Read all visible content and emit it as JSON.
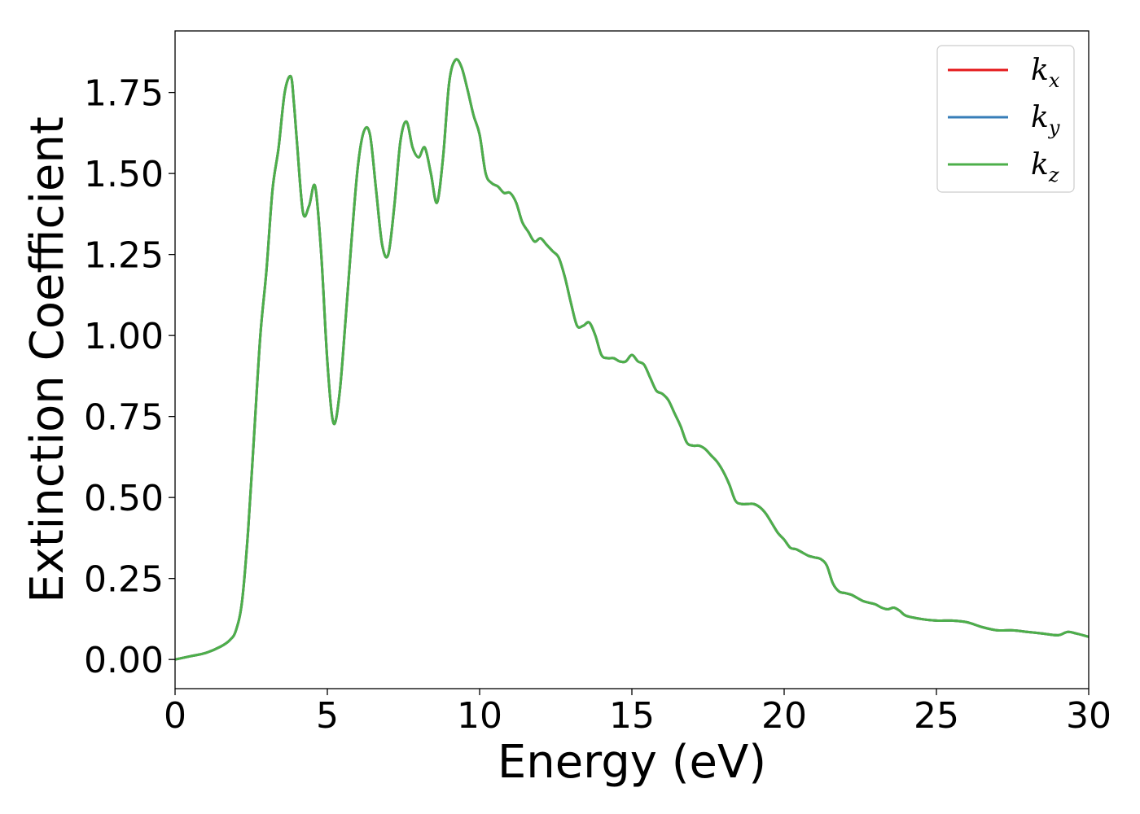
{
  "chart_data": {
    "type": "line",
    "title": "",
    "xlabel": "Energy (eV)",
    "ylabel": "Extinction Coefficient",
    "xlim": [
      0,
      30
    ],
    "ylim": [
      -0.09,
      1.94
    ],
    "xticks": [
      0,
      5,
      10,
      15,
      20,
      25,
      30
    ],
    "xtick_labels": [
      "0",
      "5",
      "10",
      "15",
      "20",
      "25",
      "30"
    ],
    "yticks": [
      0.0,
      0.25,
      0.5,
      0.75,
      1.0,
      1.25,
      1.5,
      1.75
    ],
    "ytick_labels": [
      "0.00",
      "0.25",
      "0.50",
      "0.75",
      "1.00",
      "1.25",
      "1.50",
      "1.75"
    ],
    "grid": false,
    "legend_position": "top-right",
    "x": [
      0,
      0.5,
      1.0,
      1.5,
      1.8,
      2.0,
      2.2,
      2.4,
      2.6,
      2.8,
      3.0,
      3.2,
      3.4,
      3.6,
      3.8,
      3.9,
      4.0,
      4.2,
      4.4,
      4.6,
      4.8,
      5.0,
      5.2,
      5.4,
      5.6,
      5.8,
      6.0,
      6.2,
      6.4,
      6.6,
      6.8,
      7.0,
      7.2,
      7.4,
      7.6,
      7.8,
      8.0,
      8.2,
      8.4,
      8.6,
      8.8,
      9.0,
      9.2,
      9.4,
      9.6,
      9.8,
      10.0,
      10.2,
      10.4,
      10.6,
      10.8,
      11.0,
      11.2,
      11.4,
      11.6,
      11.8,
      12.0,
      12.2,
      12.4,
      12.6,
      12.8,
      13.0,
      13.2,
      13.4,
      13.6,
      13.8,
      14.0,
      14.2,
      14.4,
      14.6,
      14.8,
      15.0,
      15.2,
      15.4,
      15.6,
      15.8,
      16.0,
      16.2,
      16.4,
      16.6,
      16.8,
      17.0,
      17.2,
      17.4,
      17.6,
      17.8,
      18.0,
      18.2,
      18.4,
      18.6,
      18.8,
      19.0,
      19.2,
      19.4,
      19.6,
      19.8,
      20.0,
      20.2,
      20.4,
      20.6,
      20.8,
      21.0,
      21.2,
      21.4,
      21.6,
      21.8,
      22.0,
      22.2,
      22.4,
      22.6,
      22.8,
      23.0,
      23.2,
      23.4,
      23.6,
      23.8,
      24.0,
      24.5,
      25.0,
      25.5,
      26.0,
      26.5,
      27.0,
      27.5,
      28.0,
      28.5,
      29.0,
      29.3,
      29.6,
      30.0
    ],
    "series": [
      {
        "name": "k_x",
        "color": "#e41a1c",
        "values": [
          0.0,
          0.01,
          0.02,
          0.04,
          0.06,
          0.09,
          0.18,
          0.4,
          0.7,
          1.0,
          1.2,
          1.45,
          1.58,
          1.75,
          1.8,
          1.72,
          1.6,
          1.38,
          1.4,
          1.46,
          1.25,
          0.92,
          0.73,
          0.82,
          1.05,
          1.3,
          1.52,
          1.63,
          1.62,
          1.45,
          1.28,
          1.25,
          1.4,
          1.6,
          1.66,
          1.58,
          1.55,
          1.58,
          1.5,
          1.41,
          1.55,
          1.78,
          1.85,
          1.83,
          1.76,
          1.68,
          1.62,
          1.5,
          1.47,
          1.46,
          1.44,
          1.44,
          1.41,
          1.35,
          1.32,
          1.29,
          1.3,
          1.28,
          1.26,
          1.24,
          1.18,
          1.1,
          1.03,
          1.03,
          1.04,
          1.0,
          0.94,
          0.93,
          0.93,
          0.92,
          0.92,
          0.94,
          0.92,
          0.91,
          0.87,
          0.83,
          0.82,
          0.8,
          0.76,
          0.72,
          0.67,
          0.66,
          0.66,
          0.65,
          0.63,
          0.61,
          0.58,
          0.54,
          0.49,
          0.48,
          0.48,
          0.48,
          0.47,
          0.45,
          0.42,
          0.39,
          0.37,
          0.345,
          0.34,
          0.33,
          0.32,
          0.315,
          0.31,
          0.29,
          0.235,
          0.21,
          0.205,
          0.2,
          0.19,
          0.18,
          0.175,
          0.17,
          0.16,
          0.155,
          0.16,
          0.15,
          0.135,
          0.125,
          0.12,
          0.12,
          0.115,
          0.1,
          0.09,
          0.09,
          0.085,
          0.08,
          0.075,
          0.085,
          0.08,
          0.07
        ]
      },
      {
        "name": "k_y",
        "color": "#377eb8",
        "values": [
          0.0,
          0.01,
          0.02,
          0.04,
          0.06,
          0.09,
          0.18,
          0.4,
          0.7,
          1.0,
          1.2,
          1.45,
          1.58,
          1.75,
          1.8,
          1.72,
          1.6,
          1.38,
          1.4,
          1.46,
          1.25,
          0.92,
          0.73,
          0.82,
          1.05,
          1.3,
          1.52,
          1.63,
          1.62,
          1.45,
          1.28,
          1.25,
          1.4,
          1.6,
          1.66,
          1.58,
          1.55,
          1.58,
          1.5,
          1.41,
          1.55,
          1.78,
          1.85,
          1.83,
          1.76,
          1.68,
          1.62,
          1.5,
          1.47,
          1.46,
          1.44,
          1.44,
          1.41,
          1.35,
          1.32,
          1.29,
          1.3,
          1.28,
          1.26,
          1.24,
          1.18,
          1.1,
          1.03,
          1.03,
          1.04,
          1.0,
          0.94,
          0.93,
          0.93,
          0.92,
          0.92,
          0.94,
          0.92,
          0.91,
          0.87,
          0.83,
          0.82,
          0.8,
          0.76,
          0.72,
          0.67,
          0.66,
          0.66,
          0.65,
          0.63,
          0.61,
          0.58,
          0.54,
          0.49,
          0.48,
          0.48,
          0.48,
          0.47,
          0.45,
          0.42,
          0.39,
          0.37,
          0.345,
          0.34,
          0.33,
          0.32,
          0.315,
          0.31,
          0.29,
          0.235,
          0.21,
          0.205,
          0.2,
          0.19,
          0.18,
          0.175,
          0.17,
          0.16,
          0.155,
          0.16,
          0.15,
          0.135,
          0.125,
          0.12,
          0.12,
          0.115,
          0.1,
          0.09,
          0.09,
          0.085,
          0.08,
          0.075,
          0.085,
          0.08,
          0.07
        ]
      },
      {
        "name": "k_z",
        "color": "#4daf4a",
        "values": [
          0.0,
          0.01,
          0.02,
          0.04,
          0.06,
          0.09,
          0.18,
          0.4,
          0.7,
          1.0,
          1.2,
          1.45,
          1.58,
          1.75,
          1.8,
          1.72,
          1.6,
          1.38,
          1.4,
          1.46,
          1.25,
          0.92,
          0.73,
          0.82,
          1.05,
          1.3,
          1.52,
          1.63,
          1.62,
          1.45,
          1.28,
          1.25,
          1.4,
          1.6,
          1.66,
          1.58,
          1.55,
          1.58,
          1.5,
          1.41,
          1.55,
          1.78,
          1.85,
          1.83,
          1.76,
          1.68,
          1.62,
          1.5,
          1.47,
          1.46,
          1.44,
          1.44,
          1.41,
          1.35,
          1.32,
          1.29,
          1.3,
          1.28,
          1.26,
          1.24,
          1.18,
          1.1,
          1.03,
          1.03,
          1.04,
          1.0,
          0.94,
          0.93,
          0.93,
          0.92,
          0.92,
          0.94,
          0.92,
          0.91,
          0.87,
          0.83,
          0.82,
          0.8,
          0.76,
          0.72,
          0.67,
          0.66,
          0.66,
          0.65,
          0.63,
          0.61,
          0.58,
          0.54,
          0.49,
          0.48,
          0.48,
          0.48,
          0.47,
          0.45,
          0.42,
          0.39,
          0.37,
          0.345,
          0.34,
          0.33,
          0.32,
          0.315,
          0.31,
          0.29,
          0.235,
          0.21,
          0.205,
          0.2,
          0.19,
          0.18,
          0.175,
          0.17,
          0.16,
          0.155,
          0.16,
          0.15,
          0.135,
          0.125,
          0.12,
          0.12,
          0.115,
          0.1,
          0.09,
          0.09,
          0.085,
          0.08,
          0.075,
          0.085,
          0.08,
          0.07
        ]
      }
    ],
    "legend": [
      {
        "base": "k",
        "sub": "x",
        "color": "#e41a1c"
      },
      {
        "base": "k",
        "sub": "y",
        "color": "#377eb8"
      },
      {
        "base": "k",
        "sub": "z",
        "color": "#4daf4a"
      }
    ]
  }
}
